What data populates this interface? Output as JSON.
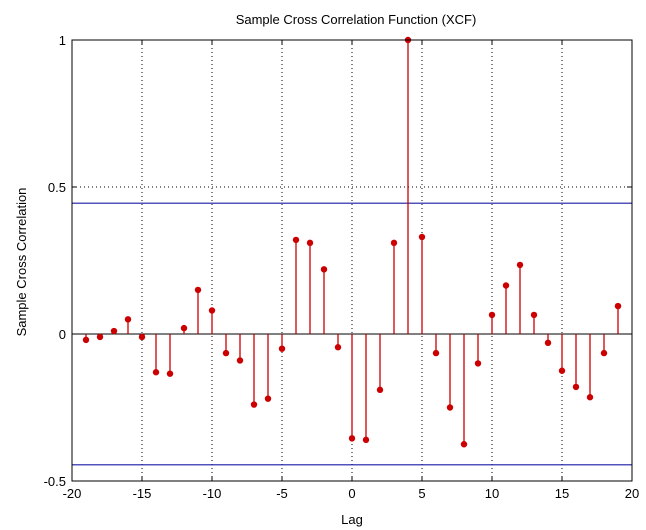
{
  "chart_data": {
    "type": "stem",
    "title": "Sample Cross Correlation Function (XCF)",
    "xlabel": "Lag",
    "ylabel": "Sample Cross Correlation",
    "xlim": [
      -20,
      20
    ],
    "ylim": [
      -0.5,
      1
    ],
    "xticks": [
      -20,
      -15,
      -10,
      -5,
      0,
      5,
      10,
      15,
      20
    ],
    "yticks": [
      -0.5,
      0,
      0.5,
      1
    ],
    "xtick_labels": [
      "-20",
      "-15",
      "-10",
      "-5",
      "0",
      "5",
      "10",
      "15",
      "20"
    ],
    "ytick_labels": [
      "-0.5",
      "0",
      "0.5",
      "1"
    ],
    "grid": "dotted",
    "lags": [
      -19,
      -18,
      -17,
      -16,
      -15,
      -14,
      -13,
      -12,
      -11,
      -10,
      -9,
      -8,
      -7,
      -6,
      -5,
      -4,
      -3,
      -2,
      -1,
      0,
      1,
      2,
      3,
      4,
      5,
      6,
      7,
      8,
      9,
      10,
      11,
      12,
      13,
      14,
      15,
      16,
      17,
      18,
      19
    ],
    "values": [
      -0.02,
      -0.01,
      0.01,
      0.05,
      -0.01,
      -0.13,
      -0.135,
      0.02,
      0.15,
      0.08,
      -0.065,
      -0.09,
      -0.24,
      -0.22,
      -0.05,
      0.32,
      0.31,
      0.22,
      -0.045,
      -0.355,
      -0.36,
      -0.19,
      0.31,
      1.0,
      0.33,
      -0.065,
      -0.25,
      -0.375,
      -0.1,
      0.065,
      0.165,
      0.235,
      0.065,
      -0.03,
      -0.125,
      -0.18,
      -0.215,
      -0.065,
      0.095
    ],
    "bounds": [
      0.445,
      -0.445
    ],
    "colors": {
      "stem": "#cc0000",
      "bounds": "#1a1aa8",
      "zero_line": "#000000",
      "grid": "#000000"
    }
  }
}
